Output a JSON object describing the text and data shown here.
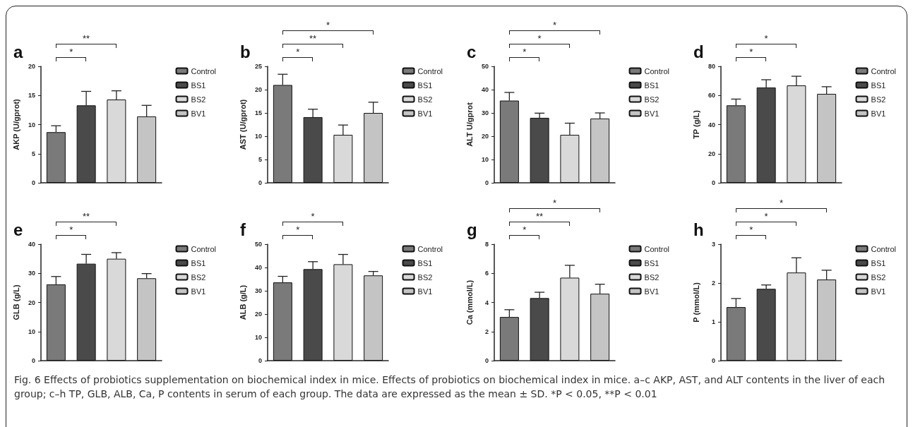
{
  "chart_data": [
    {
      "type": "bar",
      "title": "a",
      "ylabel": "AKP (U/gprot)",
      "categories": [
        null,
        null,
        null,
        null
      ],
      "ylim": [
        0,
        20
      ],
      "yticks": [
        0,
        5,
        10,
        15,
        20
      ],
      "tick_labels": "y",
      "legend": "right",
      "series": [
        {
          "name": "Control",
          "color": "#7a7a7a",
          "values": [
            8.7,
            null,
            null,
            null
          ],
          "errors": [
            [
              8.7,
              9.8
            ],
            null,
            null,
            null
          ]
        },
        {
          "name": "BS1",
          "color": "#4a4a4a",
          "values": [
            null,
            13.3,
            null,
            null
          ],
          "errors": [
            null,
            [
              13.3,
              15.7
            ],
            null,
            null
          ]
        },
        {
          "name": "BS2",
          "color": "#d9d9d9",
          "values": [
            null,
            null,
            14.3,
            null
          ],
          "errors": [
            null,
            null,
            [
              14.3,
              15.8
            ],
            null
          ]
        },
        {
          "name": "BV1",
          "color": "#c4c4c4",
          "values": [
            null,
            null,
            null,
            11.4
          ],
          "errors": [
            null,
            null,
            null,
            [
              11.4,
              13.3
            ]
          ]
        }
      ],
      "annotations": [
        {
          "text": "*"
        },
        {
          "text": "**"
        }
      ]
    },
    {
      "type": "bar",
      "title": "b",
      "ylabel": "AST (U/gprot)",
      "categories": [
        null,
        null,
        null,
        null
      ],
      "ylim": [
        0,
        25
      ],
      "yticks": [
        0,
        5,
        10,
        15,
        20,
        25
      ],
      "tick_labels": "y",
      "legend": "right",
      "series": [
        {
          "name": "Control",
          "color": "#7a7a7a",
          "values": [
            21.0,
            null,
            null,
            null
          ],
          "errors": [
            [
              21.0,
              23.3
            ],
            null,
            null,
            null
          ]
        },
        {
          "name": "BS1",
          "color": "#4a4a4a",
          "values": [
            null,
            14.1,
            null,
            null
          ],
          "errors": [
            null,
            [
              14.1,
              15.8
            ],
            null,
            null
          ]
        },
        {
          "name": "BS2",
          "color": "#d9d9d9",
          "values": [
            null,
            null,
            10.3,
            null
          ],
          "errors": [
            null,
            null,
            [
              10.3,
              12.4
            ],
            null
          ]
        },
        {
          "name": "BV1",
          "color": "#c4c4c4",
          "values": [
            null,
            null,
            null,
            15.0
          ],
          "errors": [
            null,
            null,
            null,
            [
              15.0,
              17.3
            ]
          ]
        }
      ],
      "annotations": [
        {
          "text": "*"
        },
        {
          "text": "**"
        },
        {
          "text": "*"
        }
      ]
    },
    {
      "type": "bar",
      "title": "c",
      "ylabel": "ALT U/gprot",
      "categories": [
        null,
        null,
        null,
        null
      ],
      "ylim": [
        0,
        50
      ],
      "yticks": [
        0,
        10,
        20,
        30,
        40,
        50
      ],
      "tick_labels": "y",
      "legend": "right",
      "series": [
        {
          "name": "Control",
          "color": "#7a7a7a",
          "values": [
            35.3,
            null,
            null,
            null
          ],
          "errors": [
            [
              35.3,
              38.8
            ],
            null,
            null,
            null
          ]
        },
        {
          "name": "BS1",
          "color": "#4a4a4a",
          "values": [
            null,
            27.9,
            null,
            null
          ],
          "errors": [
            null,
            [
              27.9,
              29.9
            ],
            null,
            null
          ]
        },
        {
          "name": "BS2",
          "color": "#d9d9d9",
          "values": [
            null,
            null,
            20.6,
            null
          ],
          "errors": [
            null,
            null,
            [
              20.6,
              25.6
            ],
            null
          ]
        },
        {
          "name": "BV1",
          "color": "#c4c4c4",
          "values": [
            null,
            null,
            null,
            27.6
          ],
          "errors": [
            null,
            null,
            null,
            [
              27.6,
              30.0
            ]
          ]
        }
      ],
      "annotations": [
        {
          "text": "*"
        },
        {
          "text": "*"
        },
        {
          "text": "*"
        }
      ]
    },
    {
      "type": "bar",
      "title": "d",
      "ylabel": "TP (g/L)",
      "categories": [
        null,
        null,
        null,
        null
      ],
      "ylim": [
        0,
        80
      ],
      "yticks": [
        0,
        20,
        40,
        60,
        80
      ],
      "tick_labels": "y",
      "legend": "right",
      "series": [
        {
          "name": "Control",
          "color": "#7a7a7a",
          "values": [
            53.2,
            null,
            null,
            null
          ],
          "errors": [
            [
              53.2,
              57.5
            ],
            null,
            null,
            null
          ]
        },
        {
          "name": "BS1",
          "color": "#4a4a4a",
          "values": [
            null,
            65.5,
            null,
            null
          ],
          "errors": [
            null,
            [
              65.5,
              70.8
            ],
            null,
            null
          ]
        },
        {
          "name": "BS2",
          "color": "#d9d9d9",
          "values": [
            null,
            null,
            66.9,
            null
          ],
          "errors": [
            null,
            null,
            [
              66.9,
              73.2
            ],
            null
          ]
        },
        {
          "name": "BV1",
          "color": "#c4c4c4",
          "values": [
            null,
            null,
            null,
            61.1
          ],
          "errors": [
            null,
            null,
            null,
            [
              61.1,
              66.0
            ]
          ]
        }
      ],
      "annotations": [
        {
          "text": "*"
        },
        {
          "text": "*"
        }
      ]
    },
    {
      "type": "bar",
      "title": "e",
      "ylabel": "GLB (g/L)",
      "categories": [
        null,
        null,
        null,
        null
      ],
      "ylim": [
        0,
        40
      ],
      "yticks": [
        0,
        10,
        20,
        30,
        40
      ],
      "tick_labels": "y",
      "legend": "right",
      "series": [
        {
          "name": "Control",
          "color": "#7a7a7a",
          "values": [
            26.2,
            null,
            null,
            null
          ],
          "errors": [
            [
              26.2,
              28.9
            ],
            null,
            null,
            null
          ]
        },
        {
          "name": "BS1",
          "color": "#4a4a4a",
          "values": [
            null,
            33.3,
            null,
            null
          ],
          "errors": [
            null,
            [
              33.3,
              36.5
            ],
            null,
            null
          ]
        },
        {
          "name": "BS2",
          "color": "#d9d9d9",
          "values": [
            null,
            null,
            35.0,
            null
          ],
          "errors": [
            null,
            null,
            [
              35.0,
              37.1
            ],
            null
          ]
        },
        {
          "name": "BV1",
          "color": "#c4c4c4",
          "values": [
            null,
            null,
            null,
            28.3
          ],
          "errors": [
            null,
            null,
            null,
            [
              28.3,
              29.9
            ]
          ]
        }
      ],
      "annotations": [
        {
          "text": "*"
        },
        {
          "text": "**"
        }
      ]
    },
    {
      "type": "bar",
      "title": "f",
      "ylabel": "ALB (g/L)",
      "categories": [
        null,
        null,
        null,
        null
      ],
      "ylim": [
        0,
        50
      ],
      "yticks": [
        0,
        10,
        20,
        30,
        40,
        50
      ],
      "tick_labels": "y",
      "legend": "right",
      "series": [
        {
          "name": "Control",
          "color": "#7a7a7a",
          "values": [
            33.6,
            null,
            null,
            null
          ],
          "errors": [
            [
              33.6,
              36.2
            ],
            null,
            null,
            null
          ]
        },
        {
          "name": "BS1",
          "color": "#4a4a4a",
          "values": [
            null,
            39.3,
            null,
            null
          ],
          "errors": [
            null,
            [
              39.3,
              42.5
            ],
            null,
            null
          ]
        },
        {
          "name": "BS2",
          "color": "#d9d9d9",
          "values": [
            null,
            null,
            41.4,
            null
          ],
          "errors": [
            null,
            null,
            [
              41.4,
              45.6
            ],
            null
          ]
        },
        {
          "name": "BV1",
          "color": "#c4c4c4",
          "values": [
            null,
            null,
            null,
            36.6
          ],
          "errors": [
            null,
            null,
            null,
            [
              36.6,
              38.3
            ]
          ]
        }
      ],
      "annotations": [
        {
          "text": "*"
        },
        {
          "text": "*"
        }
      ]
    },
    {
      "type": "bar",
      "title": "g",
      "ylabel": "Ca (mmol/L)",
      "categories": [
        null,
        null,
        null,
        null
      ],
      "ylim": [
        0,
        8
      ],
      "yticks": [
        0,
        2,
        4,
        6,
        8
      ],
      "tick_labels": "y",
      "legend": "right",
      "series": [
        {
          "name": "Control",
          "color": "#7a7a7a",
          "values": [
            3.0,
            null,
            null,
            null
          ],
          "errors": [
            [
              3.0,
              3.5
            ],
            null,
            null,
            null
          ]
        },
        {
          "name": "BS1",
          "color": "#4a4a4a",
          "values": [
            null,
            4.3,
            null,
            null
          ],
          "errors": [
            null,
            [
              4.3,
              4.7
            ],
            null,
            null
          ]
        },
        {
          "name": "BS2",
          "color": "#d9d9d9",
          "values": [
            null,
            null,
            5.7,
            null
          ],
          "errors": [
            null,
            null,
            [
              5.7,
              6.55
            ],
            null
          ]
        },
        {
          "name": "BV1",
          "color": "#c4c4c4",
          "values": [
            null,
            null,
            null,
            4.6
          ],
          "errors": [
            null,
            null,
            null,
            [
              4.6,
              5.25
            ]
          ]
        }
      ],
      "annotations": [
        {
          "text": "*"
        },
        {
          "text": "**"
        },
        {
          "text": "*"
        }
      ]
    },
    {
      "type": "bar",
      "title": "h",
      "ylabel": "P (mmol/L)",
      "categories": [
        null,
        null,
        null,
        null
      ],
      "ylim": [
        0,
        3
      ],
      "yticks": [
        0,
        1,
        2,
        3
      ],
      "tick_labels": "y",
      "legend": "right",
      "series": [
        {
          "name": "Control",
          "color": "#7a7a7a",
          "values": [
            1.38,
            null,
            null,
            null
          ],
          "errors": [
            [
              1.38,
              1.6
            ],
            null,
            null,
            null
          ]
        },
        {
          "name": "BS1",
          "color": "#4a4a4a",
          "values": [
            null,
            1.85,
            null,
            null
          ],
          "errors": [
            null,
            [
              1.85,
              1.95
            ],
            null,
            null
          ]
        },
        {
          "name": "BS2",
          "color": "#d9d9d9",
          "values": [
            null,
            null,
            2.27,
            null
          ],
          "errors": [
            null,
            null,
            [
              2.27,
              2.65
            ],
            null
          ]
        },
        {
          "name": "BV1",
          "color": "#c4c4c4",
          "values": [
            null,
            null,
            null,
            2.09
          ],
          "errors": [
            null,
            null,
            null,
            [
              2.09,
              2.33
            ]
          ]
        }
      ],
      "annotations": [
        {
          "text": "*"
        },
        {
          "text": "*"
        },
        {
          "text": "*"
        },
        "Fig. 6  Effects of probiotics supplementation on biochemical index in mice. Effects of probiotics on biochemical index in mice. a–c AKP, AST, and ALT contents in the liver of each group; c–h TP, GLB, ALB, Ca, P contents in serum of each group. The data are expressed as the mean ± SD. *P < 0.05, **P < 0.01"
      ]
    }
  ]
}
